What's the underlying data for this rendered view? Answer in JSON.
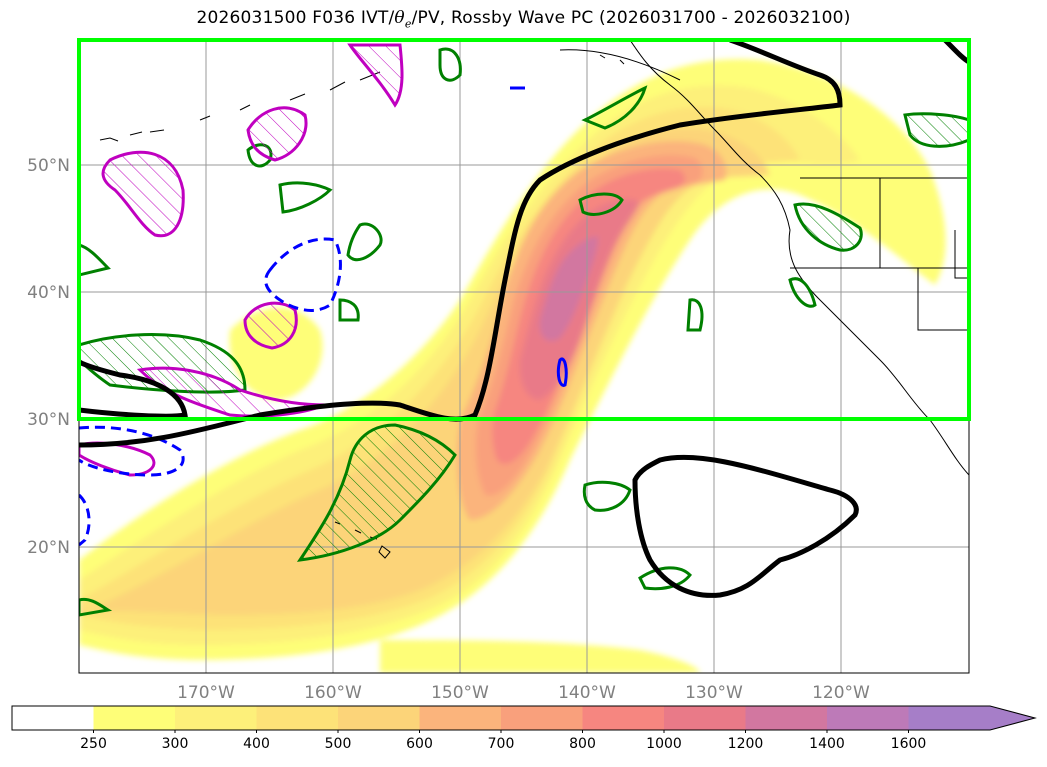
{
  "title": {
    "prefix": "2026031500 F036 IVT/",
    "theta": "θ",
    "theta_sub": "e",
    "suffix": "/PV, Rossby Wave PC (2026031700 - 2026032100)"
  },
  "axes": {
    "lat_labels": [
      "50°N",
      "40°N",
      "30°N",
      "20°N"
    ],
    "lon_labels": [
      "170°W",
      "160°W",
      "150°W",
      "140°W",
      "130°W",
      "120°W"
    ]
  },
  "colorbar": {
    "levels": [
      "250",
      "300",
      "400",
      "500",
      "600",
      "700",
      "800",
      "1000",
      "1200",
      "1400",
      "1600"
    ],
    "colors": [
      "#ffffff",
      "#fefe78",
      "#fdf07a",
      "#fde278",
      "#fcd479",
      "#fbb47c",
      "#f9a07c",
      "#f68680",
      "#e97a88",
      "#d277a0",
      "#bd7ab8",
      "#a67ec8"
    ],
    "extend": "max"
  },
  "colors": {
    "highlight_box": "#00ff00",
    "rossby_pc": "#000000",
    "pv_positive": "#008000",
    "pv_theta_e": "#c000c0",
    "negative_dashed": "#0000ff",
    "grid": "#999999"
  },
  "map": {
    "projection": "PlateCarree",
    "region": "North Pacific",
    "lon_range": [
      "180°",
      "110°W"
    ],
    "lat_range": [
      "10°N",
      "60°N"
    ]
  }
}
